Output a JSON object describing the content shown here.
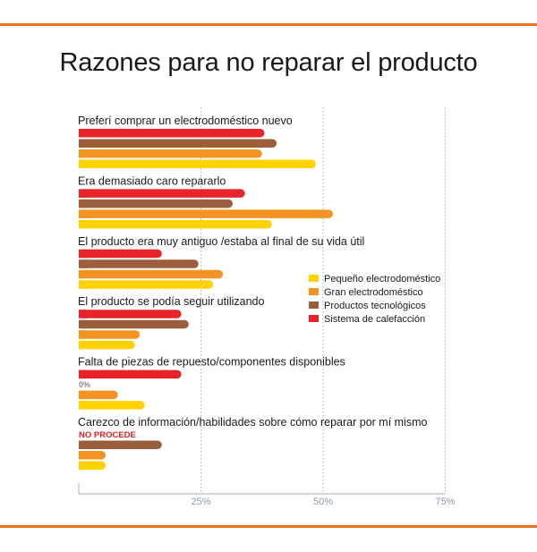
{
  "title": "Razones para no reparar el producto",
  "chart_data": {
    "type": "bar",
    "orientation": "horizontal",
    "title": "Razones para no reparar el producto",
    "xlim": [
      0,
      75
    ],
    "xticks": [
      25,
      50,
      75
    ],
    "xtick_labels": [
      "25%",
      "50%",
      "75%"
    ],
    "grid": "vertical dotted",
    "legend_position": "right",
    "categories": [
      "Preferí comprar un electrodoméstico nuevo",
      "Era demasiado caro repararlo",
      "El producto era muy antiguo /estaba al final de su vida útil",
      "El producto se podía seguir utilizando",
      "Falta de piezas de repuesto/componentes disponibles",
      "Carezco de información/habilidades sobre cómo reparar por mí mismo"
    ],
    "series": [
      {
        "name": "Sistema de calefacción",
        "color": "#e8232a",
        "values": [
          38,
          34,
          17,
          21,
          21,
          null
        ]
      },
      {
        "name": "Productos tecnológicos",
        "color": "#9b5e3a",
        "values": [
          40.5,
          31.5,
          24.5,
          22.5,
          0,
          17
        ]
      },
      {
        "name": "Gran electrodoméstico",
        "color": "#f39322",
        "values": [
          37.5,
          52,
          29.5,
          12.5,
          8,
          5.5
        ]
      },
      {
        "name": "Pequeño electrodoméstico",
        "color": "#ffd200",
        "values": [
          48.5,
          39.5,
          27.5,
          11.5,
          13.5,
          5.5
        ]
      }
    ],
    "annotations": {
      "zero_label": "0%",
      "not_applicable_label": "NO PROCEDE"
    },
    "legend_order": [
      "Pequeño electrodoméstico",
      "Gran electrodoméstico",
      "Productos tecnológicos",
      "Sistema de calefacción"
    ]
  }
}
